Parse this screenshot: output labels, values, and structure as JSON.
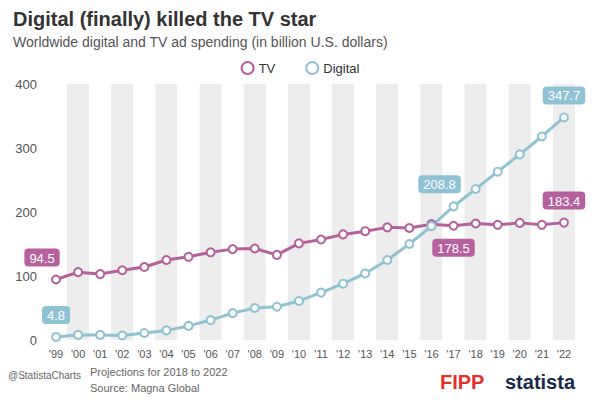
{
  "chart_data": {
    "type": "line",
    "title": "Digital (finally) killed the TV star",
    "subtitle": "Worldwide digital and TV ad spending (in billion U.S. dollars)",
    "categories": [
      "'99",
      "'00",
      "'01",
      "'02",
      "'03",
      "'04",
      "'05",
      "'06",
      "'07",
      "'08",
      "'09",
      "'10",
      "'11",
      "'12",
      "'13",
      "'14",
      "'15",
      "'16",
      "'17",
      "'18",
      "'19",
      "'20",
      "'21",
      "'22"
    ],
    "series": [
      {
        "name": "TV",
        "color": "#b5619d",
        "marker": "circle",
        "values": [
          94.5,
          106,
          103,
          109,
          114,
          125,
          130,
          137,
          142,
          143,
          133,
          151,
          157,
          165,
          170,
          176,
          175,
          181,
          178.5,
          182,
          180,
          183,
          180,
          183.4
        ],
        "value_labels": [
          "94.5",
          null,
          null,
          null,
          null,
          null,
          null,
          null,
          null,
          null,
          null,
          null,
          null,
          null,
          null,
          null,
          null,
          null,
          "178.5",
          null,
          null,
          null,
          null,
          "183.4"
        ]
      },
      {
        "name": "Digital",
        "color": "#8fc3d4",
        "marker": "circle",
        "values": [
          4.8,
          8,
          8,
          7,
          11,
          15,
          22,
          31,
          42,
          50,
          52,
          61,
          74,
          88,
          104,
          125,
          150,
          178,
          208.8,
          236,
          263,
          290,
          318,
          347.7
        ],
        "value_labels": [
          "4.8",
          null,
          null,
          null,
          null,
          null,
          null,
          null,
          null,
          null,
          null,
          null,
          null,
          null,
          null,
          null,
          null,
          null,
          "208.8",
          null,
          null,
          null,
          null,
          "347.7"
        ]
      }
    ],
    "ylim": [
      0,
      400
    ],
    "yticks": [
      0,
      100,
      200,
      300,
      400
    ],
    "grid": true,
    "legend": "top",
    "note": "Projections for 2018 to 2022",
    "source": "Source: Magna Global",
    "credit": "@StatistaCharts",
    "logos": [
      "FIPP",
      "statista"
    ]
  }
}
